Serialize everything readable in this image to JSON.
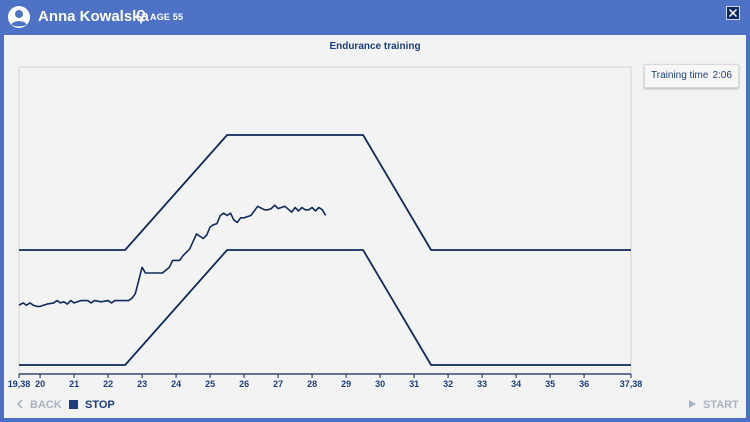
{
  "header": {
    "user_name": "Anna Kowalska",
    "age_label": "AGE 55",
    "avatar_icon": "user-circle-icon",
    "gender_icon": "female-icon",
    "close_icon": "close-icon"
  },
  "main": {
    "title": "Endurance training",
    "training_time_label": "Training time",
    "training_time_value": "2:06"
  },
  "controls": {
    "back_label": "BACK",
    "stop_label": "STOP",
    "start_label": "START"
  },
  "colors": {
    "header": "#4e73c6",
    "line": "#0f2a5c",
    "panel": "#f3f3f3"
  },
  "chart_data": {
    "type": "line",
    "title": "Endurance training",
    "x_tick_labels": [
      "19,38",
      "20",
      "21",
      "22",
      "23",
      "24",
      "25",
      "26",
      "27",
      "28",
      "29",
      "30",
      "31",
      "32",
      "33",
      "34",
      "35",
      "36",
      "37,38"
    ],
    "xlim": [
      19.38,
      37.38
    ],
    "series": [
      {
        "role": "upper-bound",
        "x": [
          19.38,
          22.5,
          25.5,
          29.5,
          31.5,
          37.38
        ],
        "y": [
          100,
          100,
          200,
          200,
          100,
          100
        ]
      },
      {
        "role": "lower-bound",
        "x": [
          19.38,
          22.5,
          25.5,
          29.5,
          31.5,
          37.38
        ],
        "y": [
          0,
          0,
          100,
          100,
          0,
          0
        ]
      },
      {
        "role": "actual",
        "x": [
          19.38,
          19.5,
          19.6,
          19.7,
          19.8,
          19.9,
          20.0,
          20.2,
          20.4,
          20.5,
          20.6,
          20.7,
          20.8,
          20.9,
          21.0,
          21.2,
          21.4,
          21.5,
          21.6,
          21.8,
          22.0,
          22.1,
          22.2,
          22.3,
          22.5,
          22.6,
          22.7,
          22.8,
          23.0,
          23.1,
          23.2,
          23.4,
          23.6,
          23.8,
          23.9,
          24.0,
          24.1,
          24.2,
          24.4,
          24.6,
          24.8,
          24.9,
          25.0,
          25.1,
          25.2,
          25.3,
          25.4,
          25.5,
          25.6,
          25.7,
          25.8,
          25.9,
          26.0,
          26.2,
          26.4,
          26.6,
          26.7,
          26.8,
          26.9,
          27.0,
          27.2,
          27.4,
          27.5,
          27.6,
          27.7,
          27.8,
          27.9,
          28.0,
          28.1,
          28.2,
          28.3,
          28.4
        ],
        "y": [
          52,
          54,
          52,
          54,
          52,
          51,
          51,
          53,
          54,
          56,
          54,
          55,
          53,
          56,
          54,
          56,
          56,
          54,
          56,
          55,
          56,
          54,
          56,
          56,
          56,
          56,
          58,
          62,
          85,
          80,
          80,
          80,
          80,
          85,
          91,
          91,
          91,
          95,
          101,
          114,
          110,
          113,
          120,
          122,
          123,
          130,
          132,
          130,
          132,
          126,
          124,
          128,
          128,
          130,
          138,
          135,
          135,
          136,
          139,
          136,
          138,
          133,
          137,
          134,
          137,
          135,
          135,
          137,
          134,
          137,
          135,
          130
        ]
      }
    ]
  }
}
